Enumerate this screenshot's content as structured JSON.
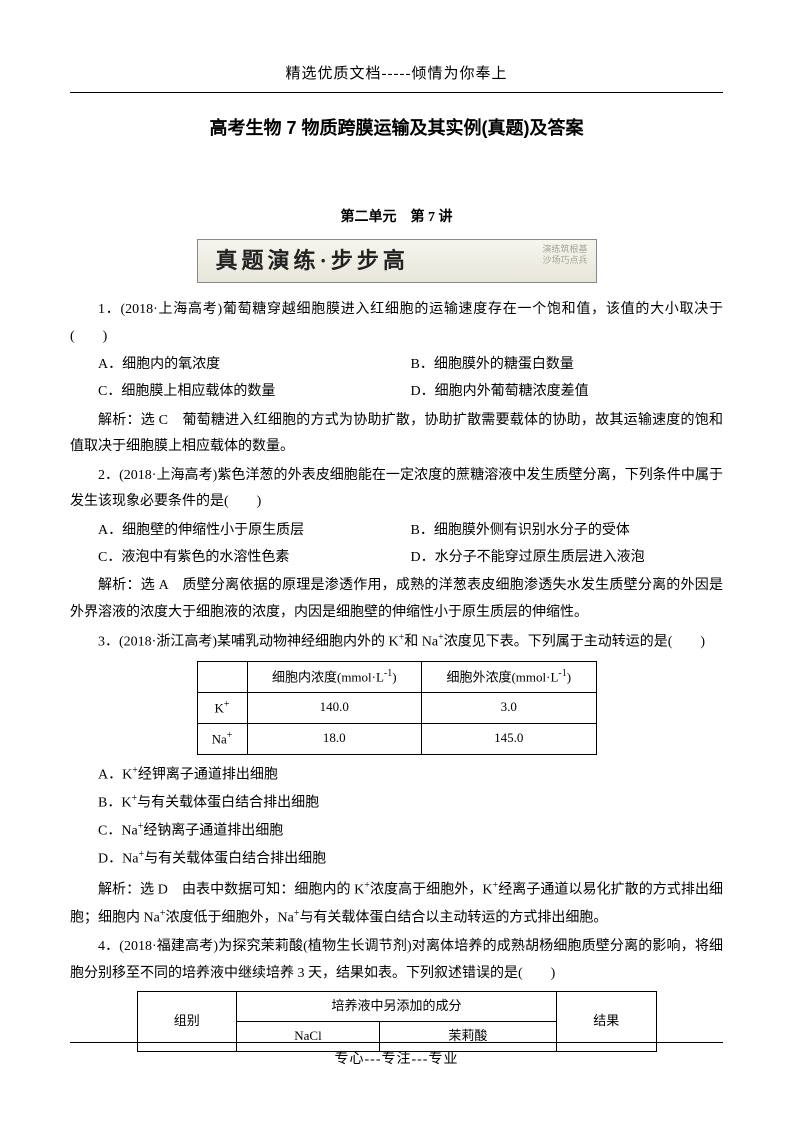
{
  "header": "精选优质文档-----倾情为你奉上",
  "title": "高考生物 7 物质跨膜运输及其实例(真题)及答案",
  "section": "第二单元　第 7 讲",
  "banner": {
    "main": "真题演练·步步高",
    "side1": "演练筑根基",
    "side2": "沙场巧点兵"
  },
  "q1": {
    "stem": "1．(2018·上海高考)葡萄糖穿越细胞膜进入红细胞的运输速度存在一个饱和值，该值的大小取决于(　　)",
    "a": "A．细胞内的氧浓度",
    "b": "B．细胞膜外的糖蛋白数量",
    "c": "C．细胞膜上相应载体的数量",
    "d": "D．细胞内外葡萄糖浓度差值",
    "exp": "解析：选 C　葡萄糖进入红细胞的方式为协助扩散，协助扩散需要载体的协助，故其运输速度的饱和值取决于细胞膜上相应载体的数量。"
  },
  "q2": {
    "stem": "2．(2018·上海高考)紫色洋葱的外表皮细胞能在一定浓度的蔗糖溶液中发生质壁分离，下列条件中属于发生该现象必要条件的是(　　)",
    "a": "A．细胞壁的伸缩性小于原生质层",
    "b": "B．细胞膜外侧有识别水分子的受体",
    "c": "C．液泡中有紫色的水溶性色素",
    "d": "D．水分子不能穿过原生质层进入液泡",
    "exp": "解析：选 A　质壁分离依据的原理是渗透作用，成熟的洋葱表皮细胞渗透失水发生质壁分离的外因是外界溶液的浓度大于细胞液的浓度，内因是细胞壁的伸缩性小于原生质层的伸缩性。"
  },
  "q3": {
    "stem_pre": "3．(2018·浙江高考)某哺乳动物神经细胞内外的 K",
    "stem_mid1": "和 Na",
    "stem_post": "浓度见下表。下列属于主动转运的是(　　)",
    "table": {
      "h1": "细胞内浓度(mmol·L",
      "h2": "细胞外浓度(mmol·L",
      "rows": [
        {
          "ion": "K",
          "in": "140.0",
          "out": "3.0"
        },
        {
          "ion": "Na",
          "in": "18.0",
          "out": "145.0"
        }
      ]
    },
    "a_pre": "A．K",
    "a_post": "经钾离子通道排出细胞",
    "b_pre": "B．K",
    "b_post": "与有关载体蛋白结合排出细胞",
    "c_pre": "C．Na",
    "c_post": "经钠离子通道排出细胞",
    "d_pre": "D．Na",
    "d_post": "与有关载体蛋白结合排出细胞",
    "exp_pre": "解析：选 D　由表中数据可知：细胞内的 K",
    "exp_mid1": "浓度高于细胞外，K",
    "exp_mid2": "经离子通道以易化扩散的方式排出细胞；细胞内 Na",
    "exp_mid3": "浓度低于细胞外，Na",
    "exp_post": "与有关载体蛋白结合以主动转运的方式排出细胞。"
  },
  "q4": {
    "stem": "4．(2018·福建高考)为探究茉莉酸(植物生长调节剂)对离体培养的成熟胡杨细胞质壁分离的影响，将细胞分别移至不同的培养液中继续培养 3 天，结果如表。下列叙述错误的是(　　)",
    "table": {
      "c1": "组别",
      "c2": "培养液中另添加的成分",
      "c3": "结果",
      "s1": "NaCl",
      "s2": "茉莉酸"
    }
  },
  "footer": "专心---专注---专业"
}
